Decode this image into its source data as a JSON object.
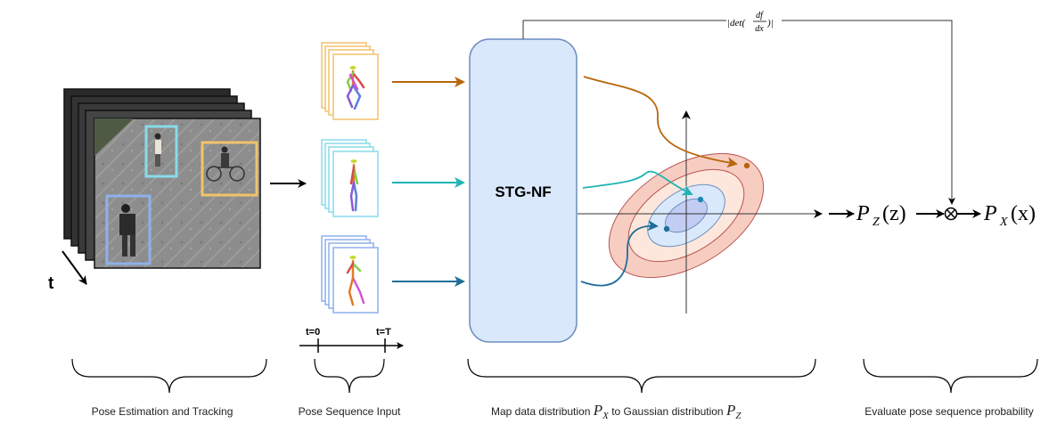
{
  "time_label": "t",
  "block_label": "STG-NF",
  "det_label": {
    "prefix": "|det(",
    "num": "df",
    "den": "dx",
    "suffix": ")|"
  },
  "pz": {
    "p": "P",
    "sub": "Z",
    "arg": "(z)"
  },
  "px": {
    "p": "P",
    "sub": "X",
    "arg": "(x)"
  },
  "timeline": {
    "start": "t=0",
    "end": "t=T"
  },
  "captions": {
    "pose_estimation": "Pose Estimation and Tracking",
    "pose_sequence": "Pose Sequence Input",
    "map_prefix": "Map data distribution ",
    "map_px_p": "P",
    "map_px_sub": "X",
    "map_middle": " to Gaussian distribution ",
    "map_pz_p": "P",
    "map_pz_sub": "Z",
    "evaluate": "Evaluate pose sequence probability"
  },
  "colors": {
    "orange": "#b8650a",
    "teal": "#1fb3b3",
    "blue": "#1e6e9a",
    "box_orange": "#f2c26b",
    "box_cyan": "#87dbea",
    "box_blue": "#8fb0ea",
    "stgnf_fill": "#dae8fc",
    "stgnf_stroke": "#6c8ebf"
  },
  "icons": [
    "video-frames-icon",
    "pose-skeleton-icon",
    "gaussian-contour-icon",
    "multiply-circle-icon"
  ]
}
